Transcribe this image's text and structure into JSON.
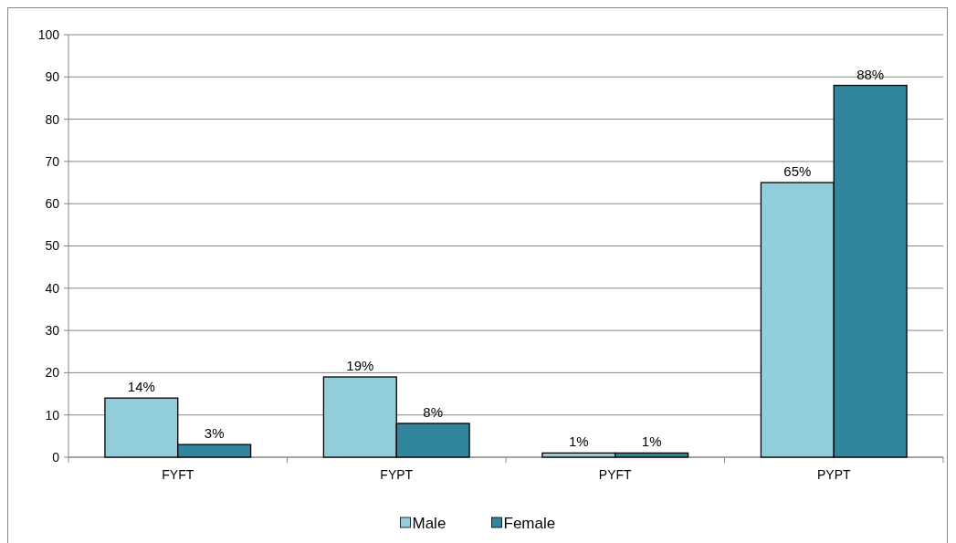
{
  "chart_data": {
    "type": "bar",
    "categories": [
      "FYFT",
      "FYPT",
      "PYFT",
      "PYPT"
    ],
    "series": [
      {
        "name": "Male",
        "color": "#92cddc",
        "values": [
          14,
          19,
          1,
          65
        ],
        "value_labels": [
          "14%",
          "19%",
          "1%",
          "65%"
        ]
      },
      {
        "name": "Female",
        "color": "#31859c",
        "values": [
          3,
          8,
          1,
          88
        ],
        "value_labels": [
          "3%",
          "8%",
          "1%",
          "88%"
        ]
      }
    ],
    "ylim": [
      0,
      100
    ],
    "yticks": [
      0,
      10,
      20,
      30,
      40,
      50,
      60,
      70,
      80,
      90,
      100
    ],
    "grid": "y",
    "legend": "bottom"
  }
}
